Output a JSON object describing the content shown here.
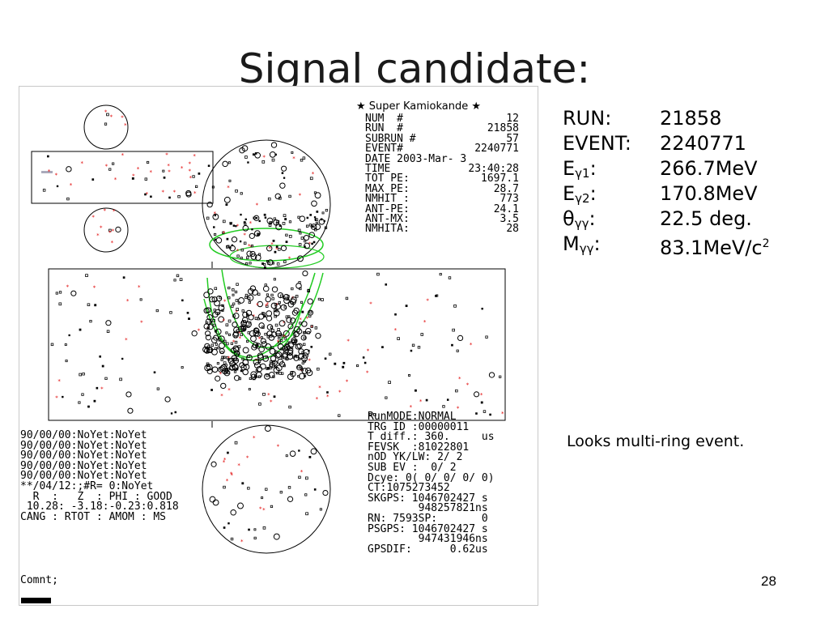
{
  "slide": {
    "title": "Signal candidate:",
    "page_number": "28",
    "comment": "Looks multi-ring event."
  },
  "params": [
    {
      "label_main": "RUN:",
      "label_sub": "",
      "value": "21858",
      "value_sup": "",
      "value_suffix": ""
    },
    {
      "label_main": "EVENT:",
      "label_sub": "",
      "value": "2240771",
      "value_sup": "",
      "value_suffix": ""
    },
    {
      "label_main": "E",
      "label_sub": "γ1",
      "label_tail": ":",
      "value": "266.7MeV",
      "value_sup": "",
      "value_suffix": ""
    },
    {
      "label_main": "E",
      "label_sub": "γ2",
      "label_tail": ":",
      "value": "170.8MeV",
      "value_sup": "",
      "value_suffix": ""
    },
    {
      "label_main": "θ",
      "label_sub": "γγ",
      "label_tail": ":",
      "value": "22.5 deg.",
      "value_sup": "",
      "value_suffix": ""
    },
    {
      "label_main": "M",
      "label_sub": "γγ",
      "label_tail": ":",
      "value": "83.1MeV/c",
      "value_sup": "2",
      "value_suffix": ""
    }
  ],
  "display": {
    "header": "★ Super Kamiokande ★",
    "info_rows": [
      {
        "key": "NUM  #",
        "val": "12"
      },
      {
        "key": "RUN  #",
        "val": "21858"
      },
      {
        "key": "SUBRUN #",
        "val": "57"
      },
      {
        "key": "EVENT#",
        "val": "2240771"
      },
      {
        "key": "DATE 2003-Mar- 3",
        "val": ""
      },
      {
        "key": "TIME",
        "val": "23:40:28"
      },
      {
        "key": "TOT PE:",
        "val": "1697.1"
      },
      {
        "key": "MAX PE:",
        "val": "28.7"
      },
      {
        "key": "NMHIT :",
        "val": "773"
      },
      {
        "key": "ANT-PE:",
        "val": "24.1"
      },
      {
        "key": "ANT-MX:",
        "val": "3.5"
      },
      {
        "key": "NMHITA:",
        "val": "28"
      }
    ],
    "left_lower": "90/00/00:NoYet:NoYet\n90/00/00:NoYet:NoYet\n90/00/00:NoYet:NoYet\n90/00/00:NoYet:NoYet\n90/00/00:NoYet:NoYet\n**/04/12:;#R= 0:NoYet\n  R  :   Z  : PHI : GOOD\n 10.28: -3.18:-0.23:0.818\nCANG : RTOT : AMOM : MS",
    "comnt": "Comnt;",
    "right_lower": "RunMODE:NORMAL\nTRG ID :00000011\nT diff.: 360.     us\nFEVSK  :81022801\nnOD YK/LW: 2/ 2\nSUB EV :  0/ 2\nDcye: 0( 0/ 0/ 0/ 0)\nCT:1075273452\nSKGPS: 1046702427 s\n        948257821ns\nRN: 7593SP:       0\nPSGPS: 1046702427 s\n        947431946ns\nGPSDIF:      0.62us",
    "colors": {
      "hit_black": "#000000",
      "hit_red": "#e00000",
      "ring": "#22cc22",
      "frame": "#000000"
    }
  }
}
